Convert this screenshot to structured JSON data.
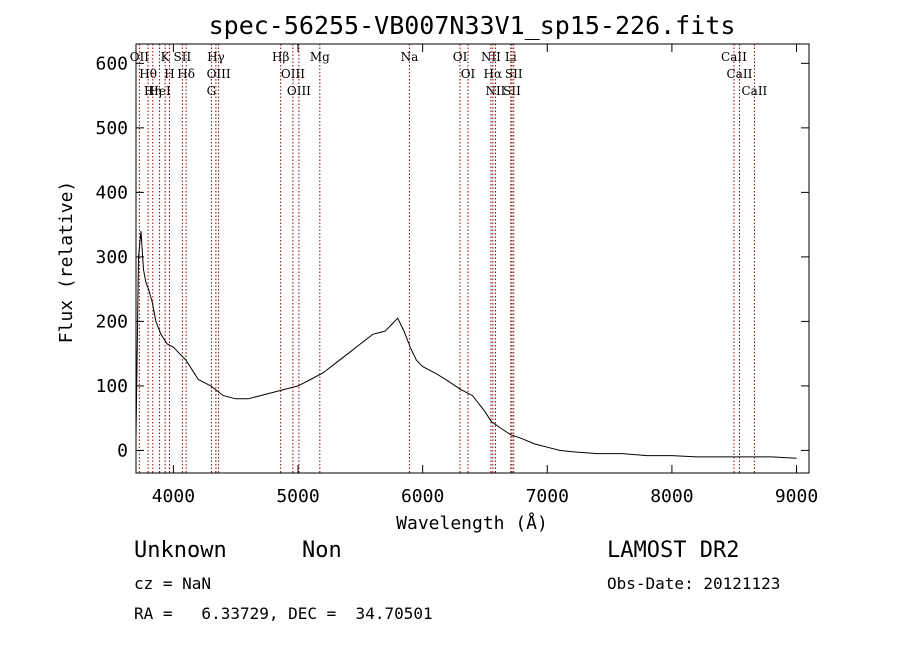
{
  "chart_data": {
    "type": "line",
    "title": "spec-56255-VB007N33V1_sp15-226.fits",
    "xlabel": "Wavelength (Å)",
    "ylabel": "Flux (relative)",
    "xlim": [
      3700,
      9100
    ],
    "ylim": [
      -35,
      630
    ],
    "xticks": [
      4000,
      5000,
      6000,
      7000,
      8000,
      9000
    ],
    "yticks": [
      0,
      100,
      200,
      300,
      400,
      500,
      600
    ],
    "grid": false,
    "line_color": "#000000",
    "marker_color": "#8b0000",
    "series": [
      {
        "x": [
          3700,
          3720,
          3740,
          3760,
          3780,
          3800,
          3830,
          3860,
          3900,
          3950,
          4000,
          4050,
          4100,
          4150,
          4200,
          4300,
          4400,
          4500,
          4600,
          4700,
          4800,
          4900,
          5000,
          5100,
          5200,
          5300,
          5400,
          5500,
          5600,
          5700,
          5750,
          5800,
          5850,
          5900,
          5950,
          6000,
          6100,
          6200,
          6300,
          6400,
          6500,
          6550,
          6600,
          6700,
          6800,
          6900,
          7000,
          7100,
          7200,
          7400,
          7600,
          7800,
          8000,
          8200,
          8400,
          8600,
          8800,
          9000
        ],
        "y": [
          20,
          300,
          340,
          280,
          260,
          250,
          230,
          200,
          180,
          165,
          160,
          150,
          140,
          125,
          110,
          100,
          85,
          80,
          80,
          85,
          90,
          95,
          100,
          110,
          120,
          135,
          150,
          165,
          180,
          185,
          195,
          205,
          185,
          160,
          140,
          130,
          120,
          108,
          95,
          85,
          60,
          45,
          38,
          25,
          18,
          10,
          5,
          0,
          -2,
          -5,
          -5,
          -8,
          -8,
          -10,
          -10,
          -10,
          -10,
          -12
        ]
      }
    ],
    "lines": [
      {
        "label": "OII",
        "x": 3727
      },
      {
        "label": "Hθ",
        "x": 3797
      },
      {
        "label": "Hη",
        "x": 3835
      },
      {
        "label": "HeI",
        "x": 3889
      },
      {
        "label": "K",
        "x": 3934
      },
      {
        "label": "H",
        "x": 3969
      },
      {
        "label": "SII",
        "x": 4072
      },
      {
        "label": "Hδ",
        "x": 4102
      },
      {
        "label": "Hγ",
        "x": 4341
      },
      {
        "label": "OIII",
        "x": 4363
      },
      {
        "label": "G",
        "x": 4305
      },
      {
        "label": "Hβ",
        "x": 4861
      },
      {
        "label": "OIII",
        "x": 4959
      },
      {
        "label": "OIII",
        "x": 5007
      },
      {
        "label": "Mg",
        "x": 5175
      },
      {
        "label": "Na",
        "x": 5894
      },
      {
        "label": "OI",
        "x": 6300
      },
      {
        "label": "OI",
        "x": 6364
      },
      {
        "label": "NII",
        "x": 6548
      },
      {
        "label": "Hα",
        "x": 6563
      },
      {
        "label": "NII",
        "x": 6584
      },
      {
        "label": "Li",
        "x": 6707
      },
      {
        "label": "SII",
        "x": 6717
      },
      {
        "label": "SII",
        "x": 6731
      },
      {
        "label": "CaII",
        "x": 8498
      },
      {
        "label": "CaII",
        "x": 8542
      },
      {
        "label": "CaII",
        "x": 8662
      }
    ]
  },
  "info": {
    "class": "Unknown",
    "subclass": "Non",
    "survey": "LAMOST DR2",
    "cz": "cz = NaN",
    "obs_date": "Obs-Date: 20121123",
    "radec": "RA =   6.33729, DEC =  34.70501"
  }
}
